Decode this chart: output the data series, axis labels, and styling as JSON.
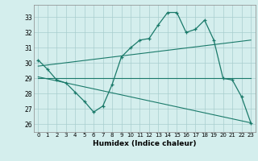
{
  "xlabel": "Humidex (Indice chaleur)",
  "bg_color": "#d4eeed",
  "line_color": "#1a7a6a",
  "xlim": [
    -0.5,
    23.5
  ],
  "ylim": [
    25.5,
    33.8
  ],
  "yticks": [
    26,
    27,
    28,
    29,
    30,
    31,
    32,
    33
  ],
  "xticks": [
    0,
    1,
    2,
    3,
    4,
    5,
    6,
    7,
    8,
    9,
    10,
    11,
    12,
    13,
    14,
    15,
    16,
    17,
    18,
    19,
    20,
    21,
    22,
    23
  ],
  "line1_x": [
    0,
    1,
    2,
    3,
    4,
    5,
    6,
    7,
    8,
    9,
    10,
    11,
    12,
    13,
    14,
    15,
    16,
    17,
    18,
    19,
    20,
    21,
    22,
    23
  ],
  "line1_y": [
    30.2,
    29.6,
    28.9,
    28.7,
    28.1,
    27.5,
    26.8,
    27.2,
    28.6,
    30.4,
    31.0,
    31.5,
    31.6,
    32.5,
    33.3,
    33.3,
    32.0,
    32.2,
    32.8,
    31.5,
    29.0,
    28.9,
    27.8,
    26.1
  ],
  "line2_x": [
    0,
    23
  ],
  "line2_y": [
    29.0,
    29.0
  ],
  "line3_x": [
    0,
    23
  ],
  "line3_y": [
    29.8,
    31.5
  ],
  "line4_x": [
    0,
    23
  ],
  "line4_y": [
    29.1,
    26.1
  ]
}
